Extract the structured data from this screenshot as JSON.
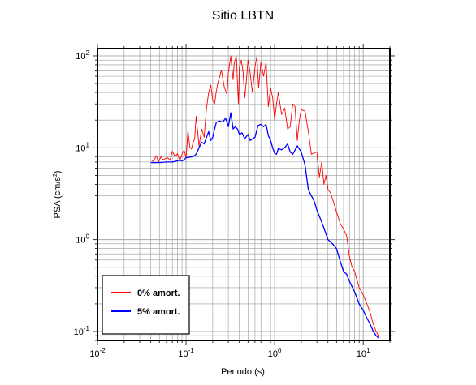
{
  "chart_data": {
    "type": "line",
    "title": "Sitio LBTN",
    "xlabel": "Periodo (s)",
    "ylabel": "PSA (cm/s",
    "ylabel_sup": "2",
    "ylabel_end": ")",
    "x_scale": "log",
    "y_scale": "log",
    "xlim": [
      0.01,
      20
    ],
    "ylim": [
      0.08,
      120
    ],
    "grid": true,
    "legend_position": "bottom-left",
    "x_ticks": [
      {
        "base": "10",
        "exp": "-2",
        "value": 0.01
      },
      {
        "base": "10",
        "exp": "-1",
        "value": 0.1
      },
      {
        "base": "10",
        "exp": "0",
        "value": 1
      },
      {
        "base": "10",
        "exp": "1",
        "value": 10
      }
    ],
    "y_ticks": [
      {
        "base": "10",
        "exp": "-1",
        "value": 0.1
      },
      {
        "base": "10",
        "exp": "0",
        "value": 1
      },
      {
        "base": "10",
        "exp": "1",
        "value": 10
      },
      {
        "base": "10",
        "exp": "2",
        "value": 100
      }
    ],
    "series": [
      {
        "name": "0% amort.",
        "color": "#ff0000",
        "x": [
          0.04,
          0.043,
          0.046,
          0.049,
          0.052,
          0.055,
          0.058,
          0.062,
          0.066,
          0.07,
          0.075,
          0.08,
          0.085,
          0.09,
          0.095,
          0.1,
          0.105,
          0.11,
          0.115,
          0.12,
          0.125,
          0.13,
          0.14,
          0.15,
          0.16,
          0.17,
          0.18,
          0.19,
          0.2,
          0.21,
          0.22,
          0.23,
          0.24,
          0.25,
          0.27,
          0.29,
          0.3,
          0.32,
          0.34,
          0.35,
          0.37,
          0.39,
          0.4,
          0.42,
          0.44,
          0.46,
          0.48,
          0.5,
          0.53,
          0.56,
          0.6,
          0.63,
          0.66,
          0.7,
          0.75,
          0.8,
          0.85,
          0.9,
          0.95,
          1.0,
          1.05,
          1.1,
          1.2,
          1.3,
          1.4,
          1.5,
          1.6,
          1.7,
          1.8,
          1.9,
          2.0,
          2.2,
          2.4,
          2.6,
          2.8,
          3.0,
          3.2,
          3.4,
          3.6,
          3.8,
          4.0,
          4.3,
          4.6,
          5.0,
          5.5,
          6.0,
          6.5,
          7.0,
          7.5,
          8.0,
          9.0,
          10.0,
          11.0,
          12.0,
          13.0,
          14.0,
          15.0
        ],
        "y": [
          7.4,
          7.1,
          8.2,
          7.0,
          8.0,
          7.4,
          7.6,
          7.8,
          7.3,
          9.2,
          8.0,
          8.6,
          7.3,
          8.5,
          9.5,
          7.7,
          15.5,
          10.3,
          9.7,
          11.4,
          12.5,
          22,
          10.5,
          16,
          13,
          27,
          40,
          48,
          33,
          30,
          42,
          52,
          60,
          70,
          46,
          38,
          65,
          100,
          55,
          85,
          98,
          30,
          75,
          90,
          68,
          35,
          55,
          90,
          65,
          40,
          75,
          98,
          45,
          85,
          60,
          85,
          28,
          45,
          35,
          20,
          30,
          40,
          23,
          27,
          16,
          17,
          30,
          28,
          12,
          20,
          26,
          25,
          15,
          8.5,
          8.8,
          9.0,
          4.8,
          7.0,
          4.0,
          5.0,
          3.5,
          3.2,
          2.6,
          2.0,
          1.5,
          1.3,
          1.1,
          0.65,
          0.5,
          0.45,
          0.3,
          0.25,
          0.2,
          0.16,
          0.12,
          0.1,
          0.088
        ]
      },
      {
        "name": "5% amort.",
        "color": "#0000ff",
        "x": [
          0.04,
          0.05,
          0.06,
          0.07,
          0.08,
          0.085,
          0.09,
          0.095,
          0.1,
          0.11,
          0.12,
          0.13,
          0.14,
          0.15,
          0.16,
          0.17,
          0.18,
          0.19,
          0.2,
          0.21,
          0.22,
          0.24,
          0.26,
          0.28,
          0.3,
          0.32,
          0.34,
          0.36,
          0.38,
          0.4,
          0.43,
          0.46,
          0.5,
          0.53,
          0.56,
          0.6,
          0.65,
          0.7,
          0.75,
          0.8,
          0.85,
          0.9,
          0.95,
          1.0,
          1.05,
          1.1,
          1.2,
          1.3,
          1.4,
          1.5,
          1.6,
          1.8,
          2.0,
          2.2,
          2.4,
          2.6,
          2.8,
          3.0,
          3.5,
          4.0,
          4.5,
          5.0,
          5.5,
          6.0,
          6.5,
          7.0,
          8.0,
          9.0,
          10.0,
          11.0,
          12.0,
          13.0,
          14.0,
          15.0
        ],
        "y": [
          6.9,
          6.9,
          7.0,
          7.0,
          7.2,
          7.3,
          7.2,
          7.4,
          7.8,
          7.9,
          8.0,
          8.5,
          10.0,
          11.5,
          11.0,
          13.0,
          15.0,
          12.0,
          13.0,
          16.0,
          19.0,
          19.5,
          19.0,
          21.0,
          17.0,
          24.0,
          16.0,
          17.0,
          16.0,
          14.0,
          14.5,
          12.5,
          14.0,
          12.0,
          12.5,
          13.0,
          17.5,
          18.0,
          17.0,
          18.0,
          13.5,
          12.0,
          10.0,
          8.7,
          8.5,
          9.8,
          9.5,
          10.0,
          11.0,
          9.0,
          8.5,
          10.5,
          9.0,
          6.5,
          3.5,
          3.0,
          2.6,
          2.1,
          1.45,
          1.0,
          0.9,
          0.8,
          0.58,
          0.45,
          0.42,
          0.35,
          0.27,
          0.2,
          0.17,
          0.14,
          0.12,
          0.1,
          0.09,
          0.085
        ]
      }
    ]
  }
}
